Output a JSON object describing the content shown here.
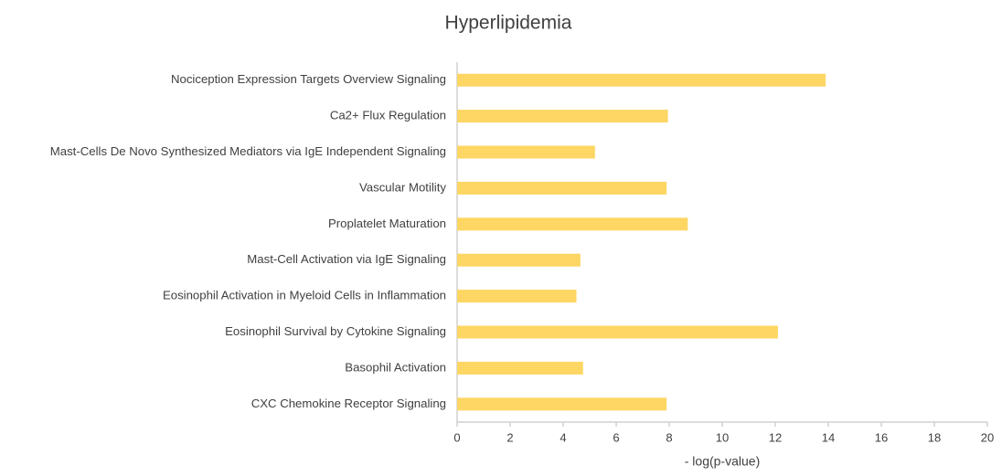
{
  "chart_data": {
    "type": "hbar",
    "title": "Hyperlipidemia",
    "x_label": "- log(p-value)",
    "categories": [
      "Nociception Expression Targets Overview Signaling",
      "Ca2+ Flux Regulation",
      "Mast-Cells De Novo Synthesized Mediators via IgE Independent Signaling",
      "Vascular Motility",
      "Proplatelet Maturation",
      "Mast-Cell Activation via IgE Signaling",
      "Eosinophil Activation in Myeloid Cells in Inflammation",
      "Eosinophil Survival by Cytokine Signaling",
      "Basophil Activation",
      "CXC Chemokine Receptor Signaling"
    ],
    "values": [
      13.9,
      7.95,
      5.2,
      7.9,
      8.7,
      4.65,
      4.5,
      12.1,
      4.75,
      7.9
    ],
    "color": "#fdd663",
    "xlim": [
      0,
      20
    ],
    "xticks": [
      0,
      2,
      4,
      6,
      8,
      10,
      12,
      14,
      16,
      18,
      20
    ]
  }
}
